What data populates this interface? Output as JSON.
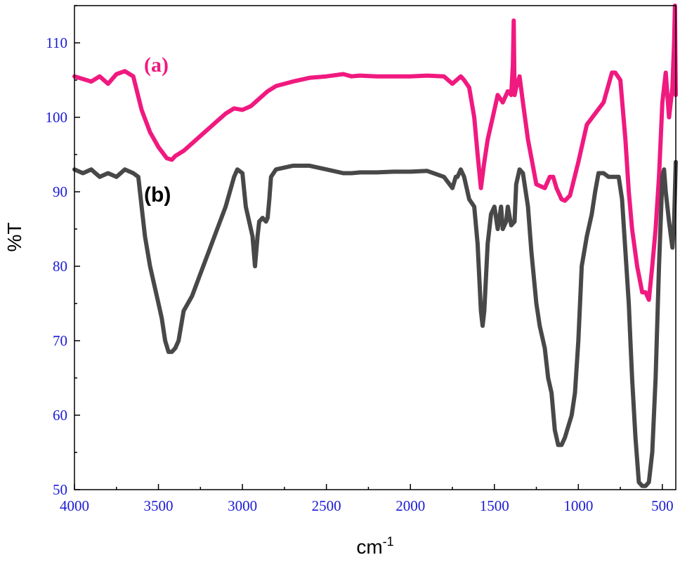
{
  "chart_data": {
    "type": "line",
    "xlabel": "cm",
    "xlabel_sup": "-1",
    "ylabel": "%T",
    "xlim": [
      4000,
      420
    ],
    "ylim": [
      50,
      115
    ],
    "x_reversed": true,
    "x_ticks": [
      4000,
      3500,
      3000,
      2500,
      2000,
      1500,
      1000,
      500
    ],
    "y_ticks": [
      50,
      60,
      70,
      80,
      90,
      100,
      110
    ],
    "tick_label_color": "#1a1ad6",
    "axis_title_color": "#000000",
    "series": [
      {
        "name": "(a)",
        "color": "#f0197f",
        "x": [
          4000,
          3900,
          3850,
          3800,
          3750,
          3700,
          3650,
          3600,
          3550,
          3500,
          3450,
          3420,
          3400,
          3350,
          3300,
          3250,
          3200,
          3150,
          3100,
          3050,
          3000,
          2950,
          2900,
          2850,
          2800,
          2700,
          2600,
          2500,
          2400,
          2350,
          2300,
          2200,
          2100,
          2000,
          1900,
          1800,
          1750,
          1700,
          1680,
          1650,
          1620,
          1600,
          1580,
          1560,
          1540,
          1500,
          1480,
          1450,
          1420,
          1400,
          1390,
          1385,
          1380,
          1370,
          1350,
          1330,
          1300,
          1250,
          1200,
          1170,
          1150,
          1130,
          1100,
          1080,
          1050,
          1000,
          950,
          900,
          850,
          800,
          780,
          750,
          720,
          700,
          680,
          650,
          620,
          600,
          580,
          560,
          540,
          520,
          500,
          480,
          460,
          440,
          430,
          425,
          420
        ],
        "y": [
          105.5,
          104.8,
          105.5,
          104.5,
          105.8,
          106.2,
          105.5,
          101,
          98,
          96,
          94.5,
          94.3,
          94.8,
          95.5,
          96.5,
          97.5,
          98.5,
          99.5,
          100.5,
          101.2,
          101,
          101.5,
          102.5,
          103.5,
          104.2,
          104.8,
          105.3,
          105.5,
          105.8,
          105.5,
          105.6,
          105.5,
          105.5,
          105.5,
          105.6,
          105.5,
          104.5,
          105.5,
          105,
          104,
          100,
          95,
          90.5,
          94,
          97,
          101,
          103,
          102,
          103.5,
          103,
          107,
          113,
          103,
          104,
          105.5,
          102,
          97,
          91,
          90.5,
          92,
          92,
          90.5,
          89,
          88.8,
          89.5,
          94,
          99,
          100.5,
          102,
          106,
          106,
          105,
          97,
          90,
          85,
          80,
          76.5,
          76.5,
          75.5,
          80,
          85,
          92,
          102,
          106,
          100,
          104,
          110,
          115,
          103
        ]
      },
      {
        "name": "(b)",
        "color": "#484848",
        "x": [
          4000,
          3950,
          3900,
          3850,
          3800,
          3750,
          3700,
          3650,
          3620,
          3600,
          3580,
          3550,
          3520,
          3500,
          3480,
          3460,
          3440,
          3420,
          3400,
          3380,
          3350,
          3300,
          3250,
          3200,
          3150,
          3100,
          3050,
          3030,
          3000,
          2980,
          2960,
          2940,
          2925,
          2910,
          2900,
          2880,
          2860,
          2850,
          2840,
          2830,
          2800,
          2700,
          2600,
          2500,
          2400,
          2350,
          2300,
          2200,
          2100,
          2000,
          1900,
          1800,
          1750,
          1730,
          1720,
          1700,
          1680,
          1650,
          1620,
          1600,
          1580,
          1570,
          1560,
          1540,
          1520,
          1500,
          1480,
          1460,
          1450,
          1430,
          1420,
          1400,
          1380,
          1370,
          1350,
          1330,
          1300,
          1280,
          1250,
          1230,
          1200,
          1180,
          1160,
          1140,
          1120,
          1100,
          1080,
          1060,
          1040,
          1020,
          1000,
          980,
          950,
          920,
          900,
          880,
          850,
          820,
          800,
          780,
          760,
          740,
          720,
          700,
          690,
          680,
          660,
          640,
          620,
          600,
          580,
          560,
          540,
          520,
          500,
          490,
          480,
          460,
          440,
          430,
          420
        ],
        "y": [
          93,
          92.5,
          93,
          92,
          92.5,
          92,
          93,
          92.5,
          92,
          88,
          84,
          80,
          77,
          75,
          73,
          70,
          68.5,
          68.5,
          69,
          70,
          74,
          76,
          79,
          82,
          85,
          88,
          92,
          93,
          92.5,
          88,
          86,
          84,
          80,
          84,
          86,
          86.5,
          86,
          86.5,
          89,
          92,
          93,
          93.5,
          93.5,
          93,
          92.5,
          92.5,
          92.6,
          92.6,
          92.7,
          92.7,
          92.8,
          92,
          90.5,
          92,
          92,
          93,
          92,
          89,
          88,
          83,
          74,
          72,
          74,
          83,
          87,
          88,
          85,
          88,
          85,
          86,
          88,
          85.5,
          86,
          91,
          93,
          92.5,
          88,
          82,
          75,
          72,
          69,
          65,
          63,
          58,
          56,
          56,
          57,
          58.5,
          60,
          63,
          70,
          80,
          84,
          87,
          90,
          92.5,
          92.5,
          92,
          92,
          92,
          92,
          89,
          82,
          75,
          70,
          65,
          57,
          51,
          50.5,
          50.5,
          51,
          55,
          65,
          80,
          92,
          93,
          90,
          86,
          82.5,
          86,
          94
        ]
      }
    ]
  }
}
